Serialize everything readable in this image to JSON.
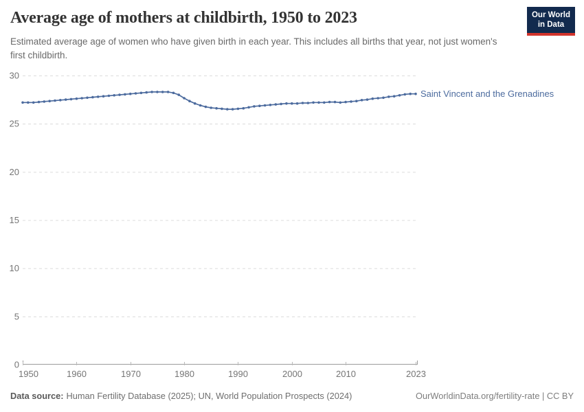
{
  "header": {
    "title": "Average age of mothers at childbirth, 1950 to 2023",
    "subtitle": "Estimated average age of women who have given birth in each year. This includes all births that year, not just women's first childbirth.",
    "logo": {
      "line1": "Our World",
      "line2": "in Data"
    }
  },
  "chart_data": {
    "type": "line",
    "title": "Average age of mothers at childbirth, 1950 to 2023",
    "xlabel": "",
    "ylabel": "",
    "xlim": [
      1950,
      2023
    ],
    "ylim": [
      0,
      30
    ],
    "yticks": [
      0,
      5,
      10,
      15,
      20,
      25,
      30
    ],
    "xticks": [
      1950,
      1960,
      1970,
      1980,
      1990,
      2000,
      2010,
      2023
    ],
    "grid": "horizontal-dashed",
    "legend_position": "right-end-of-line",
    "x": [
      1950,
      1951,
      1952,
      1953,
      1954,
      1955,
      1956,
      1957,
      1958,
      1959,
      1960,
      1961,
      1962,
      1963,
      1964,
      1965,
      1966,
      1967,
      1968,
      1969,
      1970,
      1971,
      1972,
      1973,
      1974,
      1975,
      1976,
      1977,
      1978,
      1979,
      1980,
      1981,
      1982,
      1983,
      1984,
      1985,
      1986,
      1987,
      1988,
      1989,
      1990,
      1991,
      1992,
      1993,
      1994,
      1995,
      1996,
      1997,
      1998,
      1999,
      2000,
      2001,
      2002,
      2003,
      2004,
      2005,
      2006,
      2007,
      2008,
      2009,
      2010,
      2011,
      2012,
      2013,
      2014,
      2015,
      2016,
      2017,
      2018,
      2019,
      2020,
      2021,
      2022,
      2023
    ],
    "series": [
      {
        "name": "Saint Vincent and the Grenadines",
        "color": "#4c6b9e",
        "values": [
          27.2,
          27.2,
          27.2,
          27.25,
          27.3,
          27.35,
          27.4,
          27.45,
          27.5,
          27.55,
          27.6,
          27.65,
          27.7,
          27.75,
          27.8,
          27.85,
          27.9,
          27.95,
          28.0,
          28.05,
          28.1,
          28.15,
          28.2,
          28.25,
          28.3,
          28.3,
          28.3,
          28.3,
          28.2,
          28.0,
          27.65,
          27.35,
          27.1,
          26.9,
          26.75,
          26.65,
          26.6,
          26.55,
          26.5,
          26.5,
          26.55,
          26.6,
          26.7,
          26.8,
          26.85,
          26.9,
          26.95,
          27.0,
          27.05,
          27.1,
          27.1,
          27.1,
          27.15,
          27.15,
          27.2,
          27.2,
          27.2,
          27.25,
          27.25,
          27.2,
          27.25,
          27.3,
          27.35,
          27.45,
          27.5,
          27.6,
          27.65,
          27.7,
          27.8,
          27.85,
          27.95,
          28.05,
          28.1,
          28.1
        ]
      }
    ]
  },
  "footer": {
    "source_label": "Data source:",
    "source_text": "Human Fertility Database (2025); UN, World Population Prospects (2024)",
    "credit": "OurWorldinData.org/fertility-rate | CC BY"
  },
  "colors": {
    "series_blue": "#4c6b9e",
    "grid": "#dcdcdc",
    "axis": "#9a9a9a",
    "tick_text": "#757575",
    "logo_bg": "#122a4e",
    "logo_red": "#d2342c"
  }
}
